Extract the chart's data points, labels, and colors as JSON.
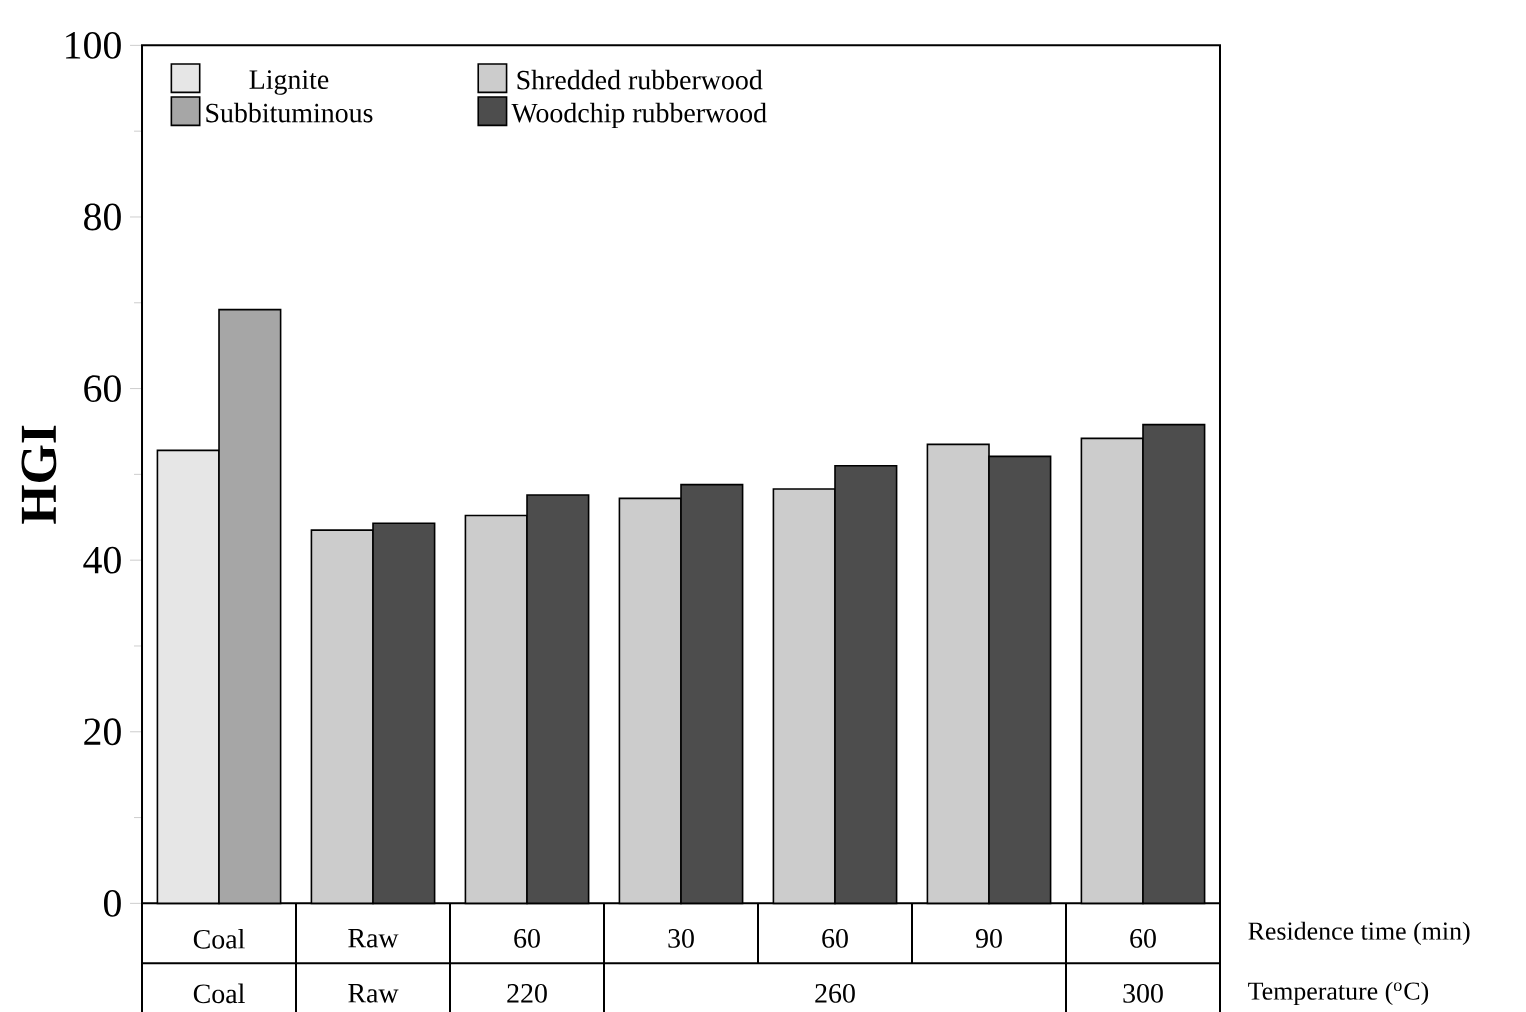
{
  "chart_data": {
    "type": "bar",
    "ylabel": "HGI",
    "xlabel": "Residence time (min)",
    "categories": [
      "Coal",
      "Raw",
      "60",
      "30",
      "60",
      "90",
      "60"
    ],
    "series": [
      {
        "name": "Lignite",
        "color": "#e6e6e6",
        "values": [
          52.8,
          null,
          null,
          null,
          null,
          null,
          null
        ]
      },
      {
        "name": "Subbituminous",
        "color": "#a6a6a6",
        "values": [
          69.2,
          null,
          null,
          null,
          null,
          null,
          null
        ]
      },
      {
        "name": "Shredded rubberwood",
        "color": "#cccccc",
        "values": [
          null,
          43.5,
          45.2,
          47.2,
          48.3,
          53.5,
          54.2
        ]
      },
      {
        "name": "Woodchip rubberwood",
        "color": "#4d4d4d",
        "values": [
          null,
          44.3,
          47.6,
          48.8,
          51.0,
          52.1,
          55.8
        ]
      }
    ],
    "annotations": [
      "Coal",
      "Raw",
      "220",
      "260",
      "300",
      "Temperature ($^{o}$C)"
    ],
    "ylim": [
      0,
      100
    ],
    "yticks": [
      0,
      20,
      40,
      60,
      80,
      100
    ],
    "legend": "top",
    "grid": false
  }
}
